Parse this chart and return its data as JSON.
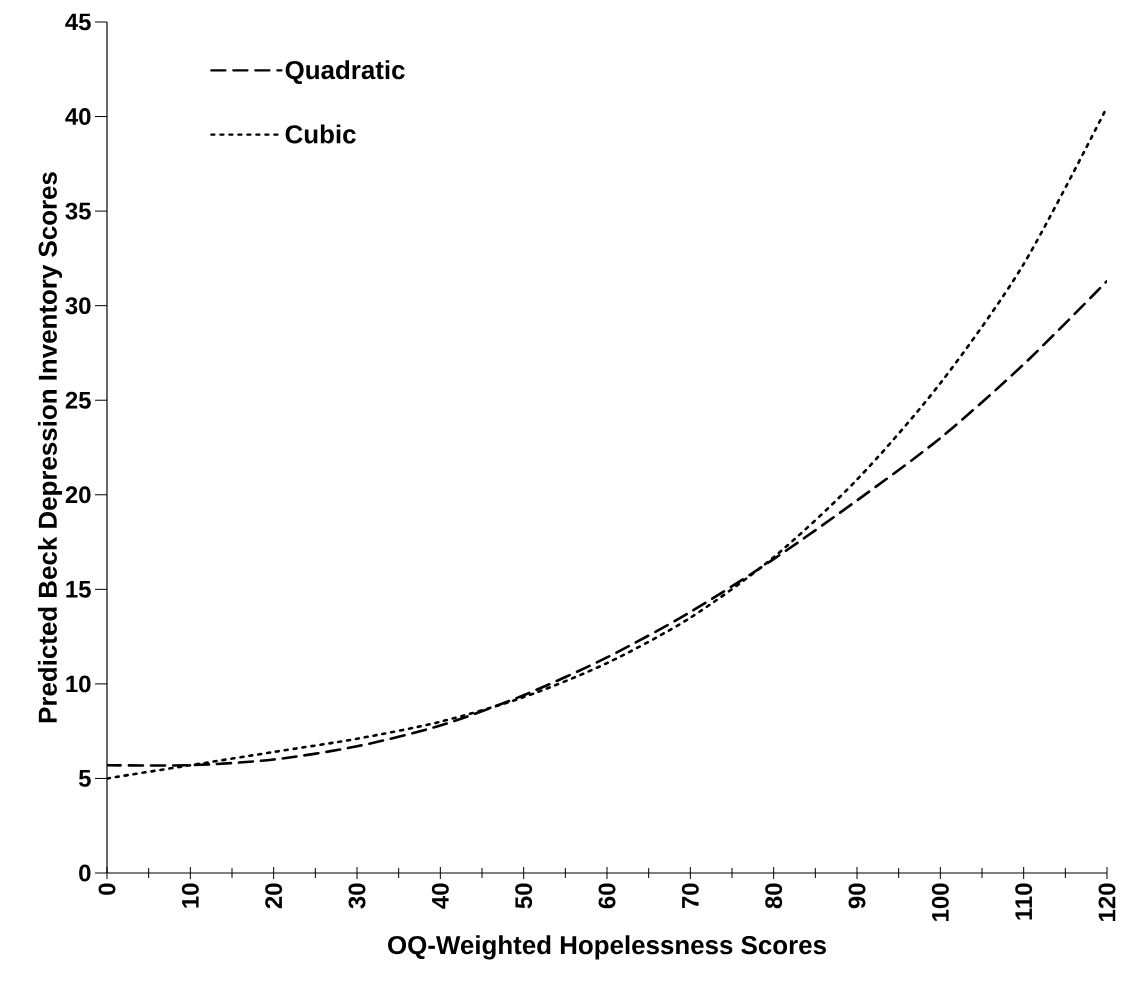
{
  "chart_data": {
    "type": "line",
    "xlabel": "OQ-Weighted Hopelessness Scores",
    "ylabel": "Predicted Beck Depression Inventory Scores",
    "x": [
      0,
      10,
      20,
      30,
      40,
      50,
      60,
      70,
      80,
      90,
      100,
      110,
      120
    ],
    "series": [
      {
        "name": "Quadratic",
        "color": "#000000",
        "line_style": "dashed",
        "values": [
          5.7,
          5.7,
          6.0,
          6.7,
          7.8,
          9.4,
          11.4,
          13.8,
          16.6,
          19.7,
          23.0,
          26.9,
          31.3
        ]
      },
      {
        "name": "Cubic",
        "color": "#000000",
        "line_style": "dotted",
        "values": [
          5.0,
          5.7,
          6.4,
          7.1,
          8.0,
          9.3,
          11.1,
          13.5,
          16.7,
          20.8,
          25.9,
          32.2,
          40.5
        ]
      }
    ],
    "xlim": [
      0,
      120
    ],
    "xticks": [
      0,
      10,
      20,
      30,
      40,
      50,
      60,
      70,
      80,
      90,
      100,
      110,
      120
    ],
    "ylim": [
      0,
      45
    ],
    "yticks": [
      0,
      5,
      10,
      15,
      20,
      25,
      30,
      35,
      40,
      45
    ],
    "grid": false,
    "legend": "top left"
  }
}
